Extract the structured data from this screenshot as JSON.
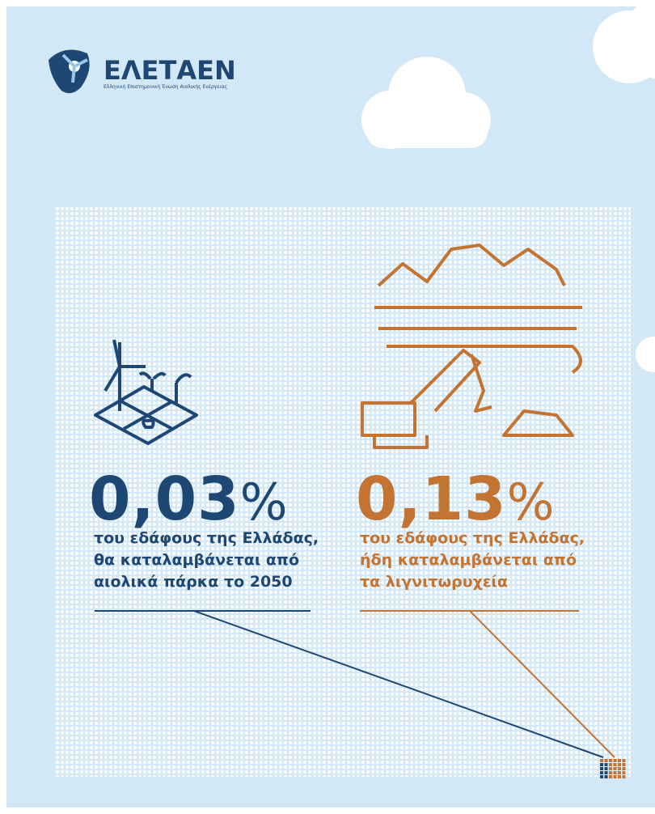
{
  "logo": {
    "name": "ΕΛΕΤΑΕΝ",
    "tagline": "Ελληνική Επιστημονική Ένωση Αιολικής Ενέργειας"
  },
  "stats": [
    {
      "figure": "0,03",
      "unit": "%",
      "lines": [
        "του εδάφους της Ελλάδας,",
        "θα καταλαμβάνεται από",
        "αιολικά πάρκα το 2050"
      ]
    },
    {
      "figure": "0,13",
      "unit": "%",
      "lines": [
        "του εδάφους της Ελλάδας,",
        "ήδη καταλαμβάνεται από",
        "τα λιγνιτωρυχεία"
      ]
    }
  ]
}
